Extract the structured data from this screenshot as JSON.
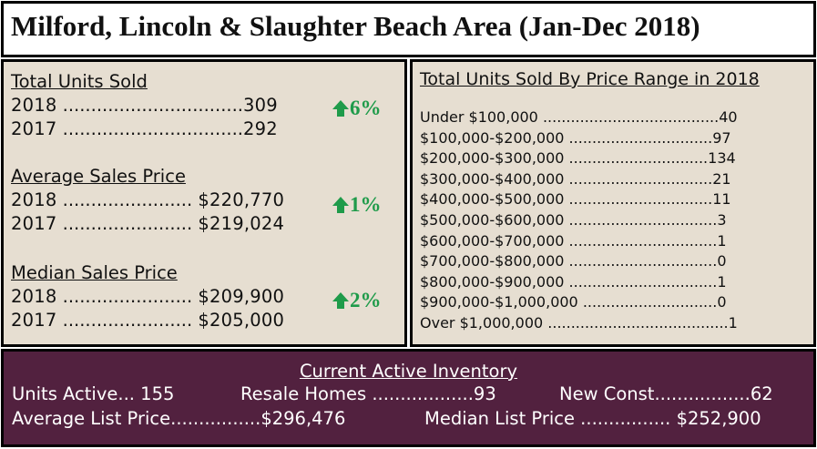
{
  "title": "Milford, Lincoln & Slaughter Beach Area (Jan-Dec 2018)",
  "colors": {
    "panel_bg": "#e6ded1",
    "bottom_bg": "#52213f",
    "change_green": "#1f9b4a"
  },
  "stats": [
    {
      "title": "Total Units Sold",
      "rows": [
        {
          "year": "2018",
          "dots": " ................................",
          "value": "309"
        },
        {
          "year": "2017",
          "dots": " ................................",
          "value": "292"
        }
      ],
      "change": "6%",
      "change_icon": "up-arrow-icon"
    },
    {
      "title": "Average Sales Price",
      "rows": [
        {
          "year": "2018",
          "dots": " ....................... ",
          "value": "$220,770"
        },
        {
          "year": "2017",
          "dots": " ....................... ",
          "value": "$219,024"
        }
      ],
      "change": "1%",
      "change_icon": "up-arrow-icon"
    },
    {
      "title": "Median Sales Price",
      "rows": [
        {
          "year": "2018",
          "dots": " ....................... ",
          "value": "$209,900"
        },
        {
          "year": "2017",
          "dots": " ....................... ",
          "value": "$205,000"
        }
      ],
      "change": "2%",
      "change_icon": "up-arrow-icon"
    }
  ],
  "price_ranges": {
    "title": "Total Units Sold By Price Range in 2018",
    "rows": [
      {
        "range": "Under $100,000",
        "dots": " ......................................",
        "count": "40"
      },
      {
        "range": "$100,000-$200,000",
        "dots": " ...............................",
        "count": "97"
      },
      {
        "range": "$200,000-$300,000",
        "dots": " ..............................",
        "count": "134"
      },
      {
        "range": "$300,000-$400,000",
        "dots": " ...............................",
        "count": "21"
      },
      {
        "range": "$400,000-$500,000",
        "dots": " ...............................",
        "count": "11"
      },
      {
        "range": "$500,000-$600,000",
        "dots": " ................................",
        "count": "3"
      },
      {
        "range": "$600,000-$700,000",
        "dots": " ................................",
        "count": "1"
      },
      {
        "range": "$700,000-$800,000",
        "dots": " ................................",
        "count": "0"
      },
      {
        "range": "$800,000-$900,000",
        "dots": " ................................",
        "count": "1"
      },
      {
        "range": "$900,000-$1,000,000",
        "dots": " .............................",
        "count": "0"
      },
      {
        "range": "Over $1,000,000",
        "dots": " .......................................",
        "count": "1"
      }
    ]
  },
  "inventory": {
    "title": "Current Active Inventory",
    "units_active_label": "Units Active",
    "units_active_dots": "... ",
    "units_active_value": "155",
    "resale_label": "Resale Homes",
    "resale_dots": " ..................",
    "resale_value": "93",
    "new_const_label": "New Const",
    "new_const_dots": ".................",
    "new_const_value": "62",
    "avg_list_label": "Average List Price",
    "avg_list_dots": "................",
    "avg_list_value": "$296,476",
    "median_list_label": "Median List Price",
    "median_list_dots": " ................ ",
    "median_list_value": "$252,900"
  }
}
